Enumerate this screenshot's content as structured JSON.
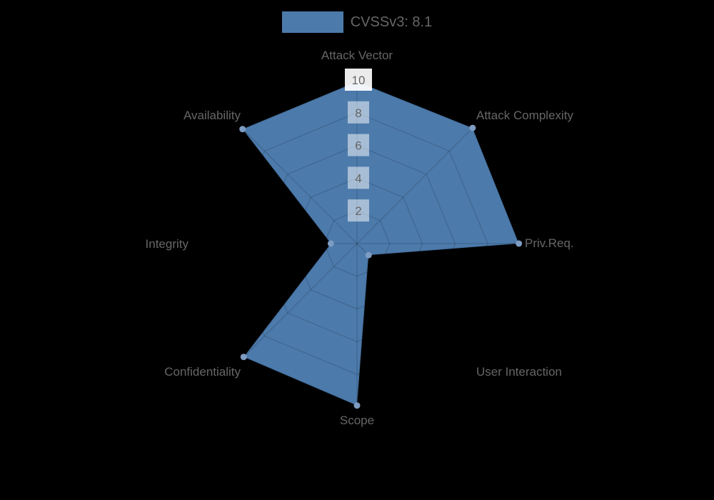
{
  "ui": {
    "background_color": "#000000",
    "text_color": "#666666"
  },
  "chart_data": {
    "type": "radar",
    "title": "",
    "categories": [
      "Attack Vector",
      "Attack Complexity",
      "Priv.Req.",
      "User Interaction",
      "Scope",
      "Confidentiality",
      "Integrity",
      "Availability"
    ],
    "series": [
      {
        "name": "CVSSv3: 8.1",
        "values": [
          9.9,
          10,
          9.9,
          1,
          9.9,
          9.8,
          1.6,
          9.9
        ],
        "fill_color": "#4c7aab",
        "point_color": "#7e9cc2"
      }
    ],
    "scale": {
      "min": 0,
      "max": 10,
      "tick_step": 2,
      "tick_labels": [
        "2",
        "4",
        "6",
        "8",
        "10"
      ]
    },
    "grid": true,
    "grid_shape": "polygon",
    "legend_position": "top",
    "grid_color": "rgba(0,0,0,0.16)",
    "outline_color": "rgba(0,0,0,0.10)",
    "tick_backdrop_color": "rgba(255,255,255,0.5)",
    "tick_backdrop_color_top": "rgba(255,255,255,0.92)",
    "axis_label_color": "#666666",
    "tick_label_color": "#666666"
  }
}
